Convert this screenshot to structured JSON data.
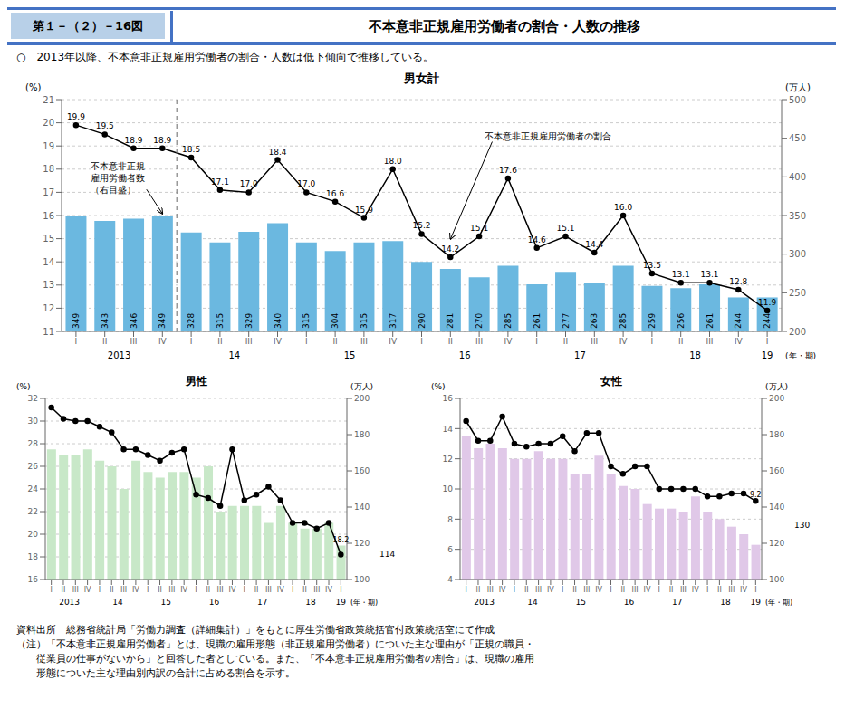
{
  "title_label": "第１－（２）－16図",
  "title": "不本意非正規雇用労働者の割合・人数の推移",
  "subtitle": "○　2013年以降、不本意非正規雇用労働者の割合・人数は低下傾向で推移している。",
  "footer": [
    "資料出所　総務省統計局「労働力調査（詳細集計）」をもとに厚生労働省政策統括官付政策統括室にて作成",
    "（注）「不本意非正規雇用労働者」とは、現職の雇用形態（非正規雇用労働者）についた主な理由が「正規の職員・",
    "　　従業員の仕事がないから」と回答した者としている。また、「不本意非正規雇用労働者の割合」は、現職の雇用",
    "　　形態についた主な理由別内訳の合計に占める割合を示す。"
  ],
  "chart_data": [
    {
      "type": "bar",
      "title": "男女計",
      "y_label": "(%)",
      "y2_label": "(万人)",
      "x_label": "(年・期)",
      "categories": [
        "I",
        "II",
        "III",
        "IV",
        "I",
        "II",
        "III",
        "IV",
        "I",
        "II",
        "III",
        "IV",
        "I",
        "II",
        "III",
        "IV",
        "I",
        "II",
        "III",
        "IV",
        "I",
        "II",
        "III",
        "IV",
        "I"
      ],
      "x_groups": [
        {
          "label": "2013",
          "size": 4
        },
        {
          "label": "14",
          "size": 4
        },
        {
          "label": "15",
          "size": 4
        },
        {
          "label": "16",
          "size": 4
        },
        {
          "label": "17",
          "size": 4
        },
        {
          "label": "18",
          "size": 4
        },
        {
          "label": "19",
          "size": 1
        }
      ],
      "ylim": [
        11,
        21
      ],
      "yticks": [
        11,
        12,
        13,
        14,
        15,
        16,
        17,
        18,
        19,
        20,
        21
      ],
      "y2lim": [
        200,
        500
      ],
      "y2ticks": [
        200,
        250,
        300,
        350,
        400,
        450,
        500
      ],
      "grid": true,
      "divider_after": 3,
      "series": [
        {
          "type": "bar",
          "axis": "y2",
          "color": "#6BB8E0",
          "data_labels": true,
          "values": [
            349,
            343,
            346,
            349,
            328,
            315,
            329,
            340,
            315,
            304,
            315,
            317,
            290,
            281,
            270,
            285,
            261,
            277,
            263,
            285,
            259,
            256,
            261,
            244,
            244
          ]
        },
        {
          "type": "line",
          "axis": "y",
          "color": "#000000",
          "marker": "circle",
          "data_labels": true,
          "values": [
            19.9,
            19.5,
            18.9,
            18.9,
            18.5,
            17.1,
            17.0,
            18.4,
            17.0,
            16.6,
            15.9,
            18.0,
            15.2,
            14.2,
            15.1,
            17.6,
            14.6,
            15.1,
            14.4,
            16.0,
            13.5,
            13.1,
            13.1,
            12.8,
            11.9
          ],
          "value_labels": [
            "19.9",
            "19.5",
            "18.9",
            "18.9",
            "18.5",
            "17.1",
            "17.0",
            "18.4",
            "17.0",
            "16.6",
            "15.9",
            "18.0",
            "15.2",
            "14.2",
            "15.1",
            "17.6",
            "14.6",
            "15.1",
            "14.4",
            "16.0",
            "13.5",
            "13.1",
            "13.1",
            "12.8",
            "11.9"
          ]
        }
      ],
      "annotations": [
        {
          "text": "不本意非正規雇用労働者の割合",
          "series": 1
        },
        {
          "lines": [
            "不本意非正規",
            "雇用労働者数",
            "（右目盛）"
          ],
          "series": 0
        }
      ]
    },
    {
      "type": "bar",
      "title": "男性",
      "y_label": "(%)",
      "y2_label": "(万人)",
      "x_label": "(年・期)",
      "categories": [
        "I",
        "II",
        "III",
        "IV",
        "I",
        "II",
        "III",
        "IV",
        "I",
        "II",
        "III",
        "IV",
        "I",
        "II",
        "III",
        "IV",
        "I",
        "II",
        "III",
        "IV",
        "I",
        "II",
        "III",
        "IV",
        "I"
      ],
      "x_groups": [
        {
          "label": "2013",
          "size": 4
        },
        {
          "label": "14",
          "size": 4
        },
        {
          "label": "15",
          "size": 4
        },
        {
          "label": "16",
          "size": 4
        },
        {
          "label": "17",
          "size": 4
        },
        {
          "label": "18",
          "size": 4
        },
        {
          "label": "19",
          "size": 1
        }
      ],
      "ylim": [
        16,
        32
      ],
      "yticks": [
        16,
        18,
        20,
        22,
        24,
        26,
        28,
        30,
        32
      ],
      "y2lim": [
        100,
        200
      ],
      "y2ticks": [
        100,
        120,
        140,
        160,
        180,
        200
      ],
      "grid": true,
      "series": [
        {
          "type": "bar",
          "axis": "y",
          "color": "#C8E8C8",
          "values": [
            27.5,
            27.0,
            27.0,
            27.5,
            26.5,
            26.0,
            24.0,
            26.5,
            25.5,
            25.0,
            25.5,
            25.5,
            25.0,
            26.0,
            22.0,
            22.5,
            22.5,
            22.5,
            21.0,
            22.5,
            21.0,
            20.5,
            20.5,
            21.0,
            19.0
          ]
        },
        {
          "type": "line",
          "axis": "y",
          "color": "#000000",
          "marker": "circle",
          "values": [
            31.2,
            30.2,
            30.0,
            30.0,
            29.5,
            29.0,
            27.5,
            27.5,
            27.0,
            26.5,
            27.2,
            27.5,
            23.5,
            23.2,
            22.5,
            27.5,
            23.0,
            23.5,
            24.2,
            23.0,
            21.0,
            21.0,
            20.5,
            21.0,
            18.2
          ]
        }
      ],
      "annotations": [
        {
          "text": "18.2",
          "y": 18.2
        },
        {
          "text": "114",
          "y2": 114
        }
      ]
    },
    {
      "type": "bar",
      "title": "女性",
      "y_label": "(%)",
      "y2_label": "(万人)",
      "x_label": "(年・期)",
      "categories": [
        "I",
        "II",
        "III",
        "IV",
        "I",
        "II",
        "III",
        "IV",
        "I",
        "II",
        "III",
        "IV",
        "I",
        "II",
        "III",
        "IV",
        "I",
        "II",
        "III",
        "IV",
        "I",
        "II",
        "III",
        "IV",
        "I"
      ],
      "x_groups": [
        {
          "label": "2013",
          "size": 4
        },
        {
          "label": "14",
          "size": 4
        },
        {
          "label": "15",
          "size": 4
        },
        {
          "label": "16",
          "size": 4
        },
        {
          "label": "17",
          "size": 4
        },
        {
          "label": "18",
          "size": 4
        },
        {
          "label": "19",
          "size": 1
        }
      ],
      "ylim": [
        4,
        16
      ],
      "yticks": [
        4,
        6,
        8,
        10,
        12,
        14,
        16
      ],
      "y2lim": [
        100,
        200
      ],
      "y2ticks": [
        100,
        120,
        140,
        160,
        180,
        200
      ],
      "grid": true,
      "series": [
        {
          "type": "bar",
          "axis": "y",
          "color": "#E0C8E8",
          "values": [
            13.5,
            12.7,
            13.0,
            12.7,
            12.0,
            12.0,
            12.5,
            12.0,
            12.0,
            11.0,
            11.0,
            12.2,
            11.0,
            10.2,
            10.0,
            9.0,
            8.7,
            8.7,
            8.5,
            9.5,
            8.5,
            8.0,
            7.5,
            7.0,
            6.3
          ]
        },
        {
          "type": "line",
          "axis": "y",
          "color": "#000000",
          "marker": "circle",
          "values": [
            14.5,
            13.2,
            13.2,
            14.8,
            13.0,
            12.8,
            13.0,
            13.0,
            13.5,
            12.5,
            13.7,
            13.7,
            11.5,
            11.0,
            11.5,
            11.5,
            10.0,
            10.0,
            10.0,
            10.0,
            9.5,
            9.5,
            9.7,
            9.7,
            9.2
          ]
        }
      ],
      "annotations": [
        {
          "text": "9.2",
          "y": 9.2
        },
        {
          "text": "130",
          "y2": 130
        }
      ]
    }
  ]
}
